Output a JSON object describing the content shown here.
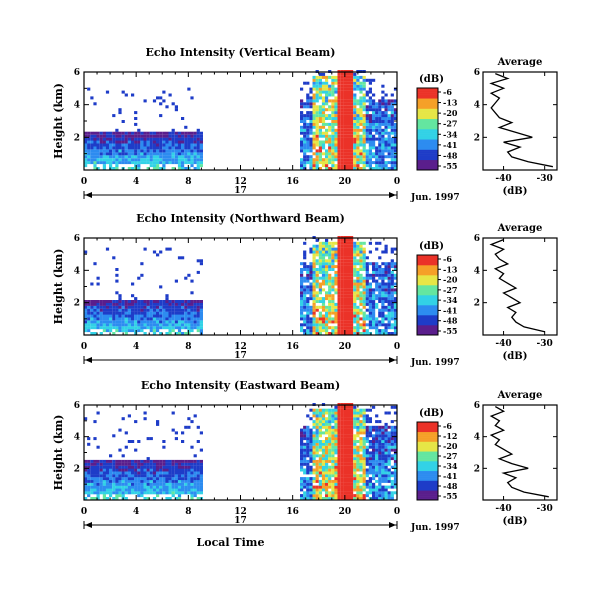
{
  "chart_data": [
    {
      "type": "heatmap",
      "title": "Echo Intensity (Vertical Beam)",
      "ylabel": "Height (km)",
      "yticks": [
        "6",
        "4",
        "2"
      ],
      "ylim": [
        0,
        6
      ],
      "xlim": [
        0,
        24
      ],
      "xticks": [
        "0",
        "4",
        "8",
        "12",
        "16",
        "20",
        "0"
      ],
      "day_label": "17",
      "date_label": "Jun. 1997",
      "colorbar": {
        "unit": "(dB)",
        "ticks": [
          "-6",
          "-13",
          "-20",
          "-27",
          "-34",
          "-41",
          "-48",
          "-55"
        ]
      },
      "echo_tops_km": {
        "morning": 2.2,
        "afternoon_core": 6.0,
        "afternoon_edge": 4.2
      },
      "morning_sparse_top_km": 5.0,
      "profile": {
        "title": "Average",
        "xlabel": "(dB)",
        "xticks": [
          "-40",
          "-30"
        ],
        "yticks": [
          "6",
          "4",
          "2"
        ],
        "height_km": [
          0.2,
          0.5,
          0.8,
          1.1,
          1.4,
          1.7,
          2.0,
          2.3,
          2.6,
          2.9,
          3.2,
          3.5,
          3.8,
          4.1,
          4.4,
          4.7,
          5.0,
          5.3,
          5.6,
          5.9
        ],
        "avg_db": [
          -28,
          -34,
          -38,
          -39,
          -36,
          -40,
          -33,
          -37,
          -41,
          -38,
          -41,
          -42,
          -43,
          -42,
          -41,
          -43,
          -40,
          -43,
          -39,
          -42
        ]
      }
    },
    {
      "type": "heatmap",
      "title": "Echo Intensity (Northward Beam)",
      "ylabel": "Height (km)",
      "yticks": [
        "6",
        "4",
        "2"
      ],
      "ylim": [
        0,
        6
      ],
      "xlim": [
        0,
        24
      ],
      "xticks": [
        "0",
        "4",
        "8",
        "12",
        "16",
        "20",
        "0"
      ],
      "day_label": "17",
      "date_label": "Jun. 1997",
      "colorbar": {
        "unit": "(dB)",
        "ticks": [
          "-6",
          "-13",
          "-20",
          "-27",
          "-34",
          "-41",
          "-48",
          "-55"
        ]
      },
      "echo_tops_km": {
        "morning": 2.1,
        "afternoon_core": 6.0,
        "afternoon_edge": 4.5
      },
      "morning_sparse_top_km": 5.3,
      "profile": {
        "title": "Average",
        "xlabel": "(dB)",
        "xticks": [
          "-40",
          "-30"
        ],
        "yticks": [
          "6",
          "4",
          "2"
        ],
        "height_km": [
          0.2,
          0.5,
          0.8,
          1.1,
          1.4,
          1.7,
          2.0,
          2.3,
          2.6,
          2.9,
          3.2,
          3.5,
          3.8,
          4.1,
          4.4,
          4.7,
          5.0,
          5.3,
          5.6,
          5.9
        ],
        "avg_db": [
          -30,
          -35,
          -37,
          -38,
          -37,
          -39,
          -36,
          -38,
          -40,
          -37,
          -39,
          -41,
          -40,
          -42,
          -39,
          -41,
          -42,
          -40,
          -43,
          -40
        ]
      }
    },
    {
      "type": "heatmap",
      "title": "Echo Intensity (Eastward Beam)",
      "ylabel": "Height (km)",
      "yticks": [
        "6",
        "4",
        "2"
      ],
      "ylim": [
        0,
        6
      ],
      "xlim": [
        0,
        24
      ],
      "xticks": [
        "0",
        "4",
        "8",
        "12",
        "16",
        "20",
        "0"
      ],
      "day_label": "17",
      "date_label": "Jun. 1997",
      "xlabel": "Local Time",
      "colorbar": {
        "unit": "(dB)",
        "ticks": [
          "-6",
          "-12",
          "-20",
          "-27",
          "-34",
          "-41",
          "-48",
          "-55"
        ]
      },
      "echo_tops_km": {
        "morning": 2.4,
        "afternoon_core": 6.0,
        "afternoon_edge": 4.6
      },
      "morning_sparse_top_km": 5.5,
      "profile": {
        "title": "Average",
        "xlabel": "(dB)",
        "xticks": [
          "-40",
          "-30"
        ],
        "yticks": [
          "6",
          "4",
          "2"
        ],
        "height_km": [
          0.2,
          0.5,
          0.8,
          1.1,
          1.4,
          1.7,
          2.0,
          2.3,
          2.6,
          2.9,
          3.2,
          3.5,
          3.8,
          4.1,
          4.4,
          4.7,
          5.0,
          5.3,
          5.6,
          5.9
        ],
        "avg_db": [
          -29,
          -35,
          -38,
          -39,
          -37,
          -40,
          -34,
          -38,
          -41,
          -38,
          -40,
          -42,
          -41,
          -43,
          -40,
          -42,
          -41,
          -43,
          -40,
          -42
        ]
      }
    }
  ]
}
